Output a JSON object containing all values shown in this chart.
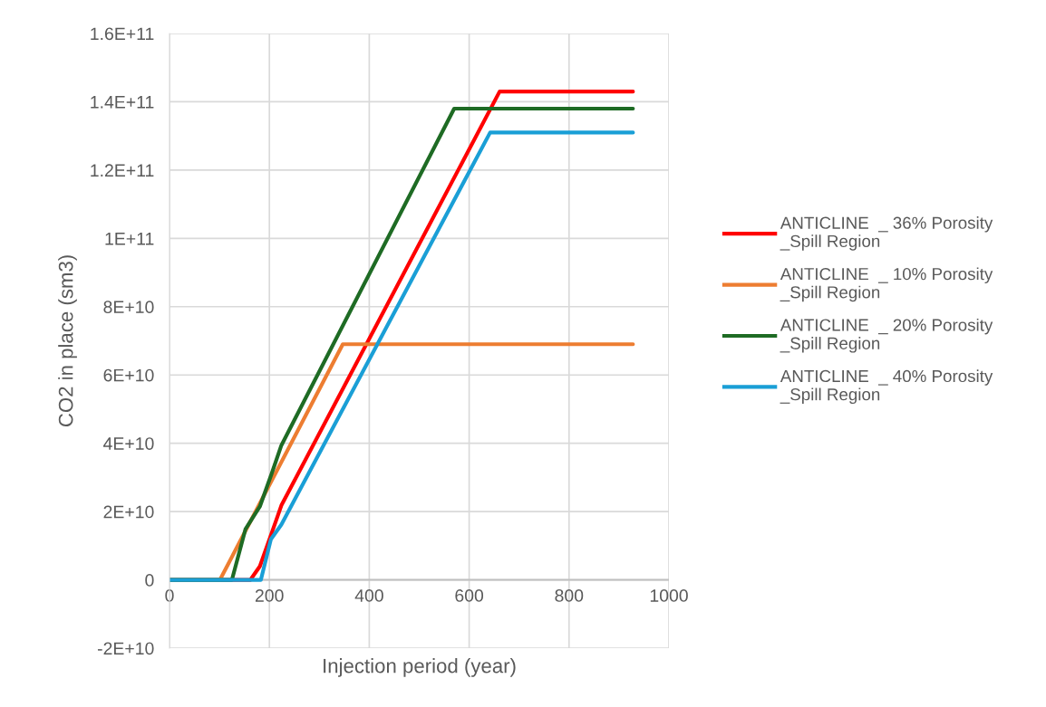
{
  "chart_data": {
    "type": "line",
    "xlabel": "Injection period (year)",
    "ylabel": "CO2 in place (sm3)",
    "xlim": [
      0,
      1000
    ],
    "xticks": [
      0,
      200,
      400,
      600,
      800,
      1000
    ],
    "ylim": [
      -20000000000.0,
      160000000000.0
    ],
    "yticks": [
      {
        "value": -20000000000.0,
        "label": "-2E+10"
      },
      0,
      {
        "value": 20000000000.0,
        "label": "2E+10"
      },
      {
        "value": 40000000000.0,
        "label": "4E+10"
      },
      {
        "value": 60000000000.0,
        "label": "6E+10"
      },
      {
        "value": 80000000000.0,
        "label": "8E+10"
      },
      {
        "value": 100000000000.0,
        "label": "1E+11"
      },
      {
        "value": 120000000000.0,
        "label": "1.2E+11"
      },
      {
        "value": 140000000000.0,
        "label": "1.4E+11"
      },
      {
        "value": 160000000000.0,
        "label": "1.6E+11"
      }
    ],
    "grid": true,
    "legend": "right",
    "marker": "none",
    "line_style": "solid",
    "series": [
      {
        "name": "ANTICLINE  _ 36% Porosity _Spill Region",
        "color": "#ff0000",
        "x": [
          0,
          162,
          181,
          214,
          224,
          661,
          928
        ],
        "values": [
          0,
          0,
          4000000000.0,
          17600000000.0,
          21800000000.0,
          143000000000.0,
          143000000000.0
        ]
      },
      {
        "name": "ANTICLINE  _ 10% Porosity _Spill Region",
        "color": "#ed7d31",
        "x": [
          0,
          101,
          347,
          928
        ],
        "values": [
          0,
          0,
          69000000000.0,
          69000000000.0
        ]
      },
      {
        "name": "ANTICLINE  _ 20% Porosity _Spill Region",
        "color": "#1e6b24",
        "x": [
          0,
          125,
          152,
          181,
          205,
          224,
          570,
          928
        ],
        "values": [
          0,
          0,
          14800000000.0,
          21500000000.0,
          31300000000.0,
          39400000000.0,
          138000000000.0,
          138000000000.0
        ]
      },
      {
        "name": "ANTICLINE  _ 40% Porosity _Spill Region",
        "color": "#1a9fd6",
        "x": [
          0,
          183,
          203,
          224,
          642,
          928
        ],
        "values": [
          0,
          0,
          11900000000.0,
          16200000000.0,
          131000000000.0,
          131000000000.0
        ]
      }
    ]
  }
}
